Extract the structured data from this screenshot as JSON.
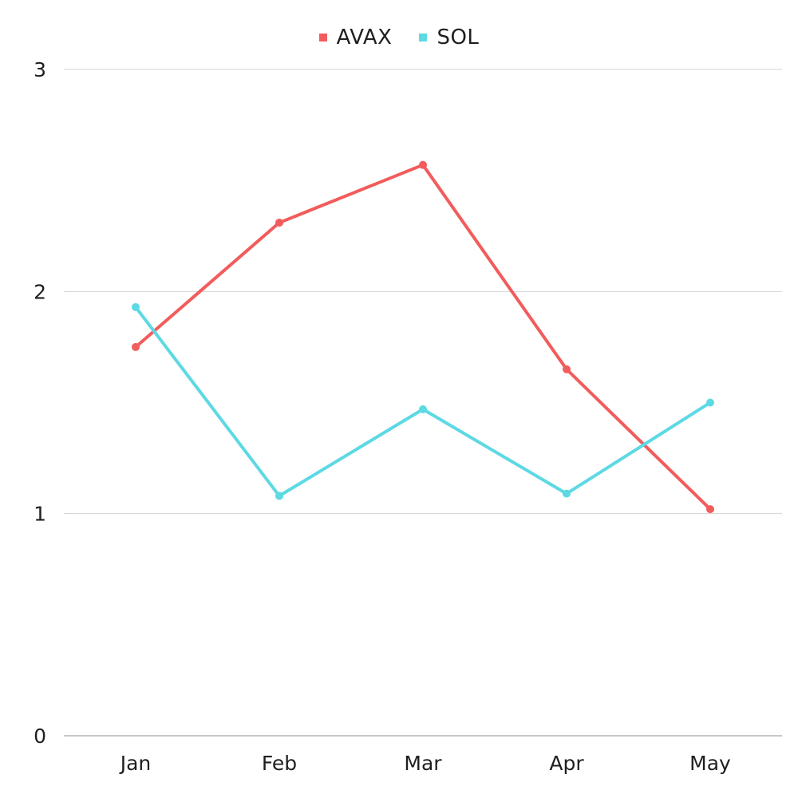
{
  "chart_data": {
    "type": "line",
    "categories": [
      "Jan",
      "Feb",
      "Mar",
      "Apr",
      "May"
    ],
    "series": [
      {
        "name": "AVAX",
        "color": "#f25c5c",
        "values": [
          1.75,
          2.31,
          2.57,
          1.65,
          1.02
        ]
      },
      {
        "name": "SOL",
        "color": "#5dd9e3",
        "values": [
          1.93,
          1.08,
          1.47,
          1.09,
          1.5
        ]
      }
    ],
    "ylim": [
      0,
      3
    ],
    "yticks": [
      "0",
      "1",
      "2",
      "3"
    ],
    "grid": true,
    "legend_position": "top-center"
  }
}
